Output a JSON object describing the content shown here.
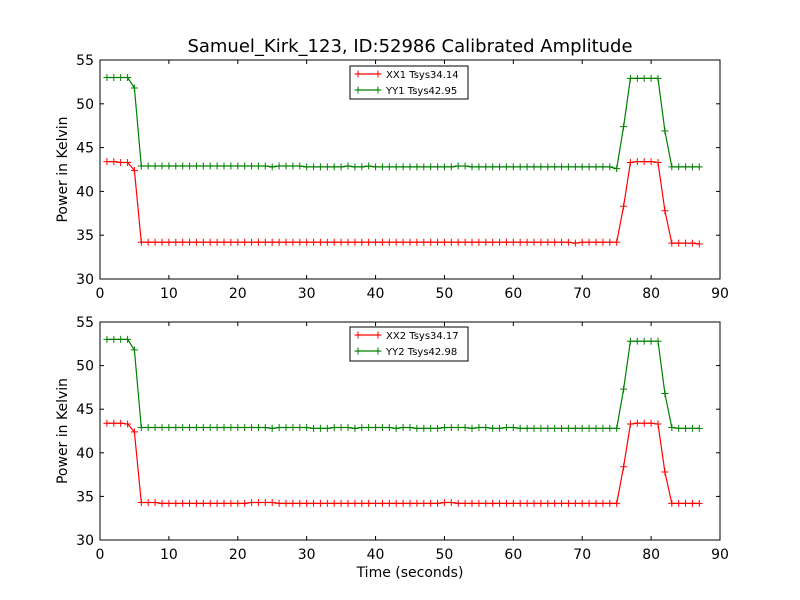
{
  "figure": {
    "title": "Samuel_Kirk_123, ID:52986 Calibrated Amplitude"
  },
  "chart_data": [
    {
      "type": "line",
      "title": "Samuel_Kirk_123, ID:52986 Calibrated Amplitude",
      "xlabel": "",
      "ylabel": "Power in Kelvin",
      "xlim": [
        0,
        90
      ],
      "ylim": [
        30,
        55
      ],
      "xticks": [
        "0",
        "10",
        "20",
        "30",
        "40",
        "50",
        "60",
        "70",
        "80",
        "90"
      ],
      "yticks": [
        "30",
        "35",
        "40",
        "45",
        "50",
        "55"
      ],
      "grid": false,
      "legend_position": "top-center",
      "x": [
        1,
        2,
        3,
        4,
        5,
        6,
        7,
        8,
        9,
        10,
        11,
        12,
        13,
        14,
        15,
        16,
        17,
        18,
        19,
        20,
        21,
        22,
        23,
        24,
        25,
        26,
        27,
        28,
        29,
        30,
        31,
        32,
        33,
        34,
        35,
        36,
        37,
        38,
        39,
        40,
        41,
        42,
        43,
        44,
        45,
        46,
        47,
        48,
        49,
        50,
        51,
        52,
        53,
        54,
        55,
        56,
        57,
        58,
        59,
        60,
        61,
        62,
        63,
        64,
        65,
        66,
        67,
        68,
        69,
        70,
        71,
        72,
        73,
        74,
        75,
        76,
        77,
        78,
        79,
        80,
        81,
        82,
        83,
        84,
        85,
        86,
        87
      ],
      "series": [
        {
          "name": "XX1 Tsys34.14",
          "color": "#ff0000",
          "values": [
            43.4,
            43.4,
            43.3,
            43.3,
            42.4,
            34.2,
            34.2,
            34.2,
            34.2,
            34.2,
            34.2,
            34.2,
            34.2,
            34.2,
            34.2,
            34.2,
            34.2,
            34.2,
            34.2,
            34.2,
            34.2,
            34.2,
            34.2,
            34.2,
            34.2,
            34.2,
            34.2,
            34.2,
            34.2,
            34.2,
            34.2,
            34.2,
            34.2,
            34.2,
            34.2,
            34.2,
            34.2,
            34.2,
            34.2,
            34.2,
            34.2,
            34.2,
            34.2,
            34.2,
            34.2,
            34.2,
            34.2,
            34.2,
            34.2,
            34.2,
            34.2,
            34.2,
            34.2,
            34.2,
            34.2,
            34.2,
            34.2,
            34.2,
            34.2,
            34.2,
            34.2,
            34.2,
            34.2,
            34.2,
            34.2,
            34.2,
            34.2,
            34.2,
            34.1,
            34.2,
            34.2,
            34.2,
            34.2,
            34.2,
            34.2,
            38.3,
            43.3,
            43.4,
            43.4,
            43.4,
            43.3,
            37.8,
            34.1,
            34.1,
            34.1,
            34.1,
            34.0
          ]
        },
        {
          "name": "YY1 Tsys42.95",
          "color": "#008000",
          "values": [
            53.0,
            53.0,
            53.0,
            53.0,
            51.8,
            42.9,
            42.9,
            42.9,
            42.9,
            42.9,
            42.9,
            42.9,
            42.9,
            42.9,
            42.9,
            42.9,
            42.9,
            42.9,
            42.9,
            42.9,
            42.9,
            42.9,
            42.9,
            42.9,
            42.8,
            42.9,
            42.9,
            42.9,
            42.9,
            42.8,
            42.8,
            42.8,
            42.8,
            42.8,
            42.8,
            42.9,
            42.8,
            42.8,
            42.9,
            42.8,
            42.8,
            42.8,
            42.8,
            42.8,
            42.8,
            42.8,
            42.8,
            42.8,
            42.8,
            42.8,
            42.8,
            42.9,
            42.9,
            42.8,
            42.8,
            42.8,
            42.8,
            42.8,
            42.8,
            42.8,
            42.8,
            42.8,
            42.8,
            42.8,
            42.8,
            42.8,
            42.8,
            42.8,
            42.8,
            42.8,
            42.8,
            42.8,
            42.8,
            42.8,
            42.6,
            47.4,
            52.9,
            52.9,
            52.9,
            52.9,
            52.9,
            46.9,
            42.8,
            42.8,
            42.8,
            42.8,
            42.8
          ]
        }
      ]
    },
    {
      "type": "line",
      "title": "",
      "xlabel": "Time (seconds)",
      "ylabel": "Power in Kelvin",
      "xlim": [
        0,
        90
      ],
      "ylim": [
        30,
        55
      ],
      "xticks": [
        "0",
        "10",
        "20",
        "30",
        "40",
        "50",
        "60",
        "70",
        "80",
        "90"
      ],
      "yticks": [
        "30",
        "35",
        "40",
        "45",
        "50",
        "55"
      ],
      "grid": false,
      "legend_position": "top-center",
      "x": [
        1,
        2,
        3,
        4,
        5,
        6,
        7,
        8,
        9,
        10,
        11,
        12,
        13,
        14,
        15,
        16,
        17,
        18,
        19,
        20,
        21,
        22,
        23,
        24,
        25,
        26,
        27,
        28,
        29,
        30,
        31,
        32,
        33,
        34,
        35,
        36,
        37,
        38,
        39,
        40,
        41,
        42,
        43,
        44,
        45,
        46,
        47,
        48,
        49,
        50,
        51,
        52,
        53,
        54,
        55,
        56,
        57,
        58,
        59,
        60,
        61,
        62,
        63,
        64,
        65,
        66,
        67,
        68,
        69,
        70,
        71,
        72,
        73,
        74,
        75,
        76,
        77,
        78,
        79,
        80,
        81,
        82,
        83,
        84,
        85,
        86,
        87
      ],
      "series": [
        {
          "name": "XX2 Tsys34.17",
          "color": "#ff0000",
          "values": [
            43.4,
            43.4,
            43.4,
            43.3,
            42.4,
            34.3,
            34.3,
            34.3,
            34.2,
            34.2,
            34.2,
            34.2,
            34.2,
            34.2,
            34.2,
            34.2,
            34.2,
            34.2,
            34.2,
            34.2,
            34.2,
            34.3,
            34.3,
            34.3,
            34.3,
            34.2,
            34.2,
            34.2,
            34.2,
            34.2,
            34.2,
            34.2,
            34.2,
            34.2,
            34.2,
            34.2,
            34.2,
            34.2,
            34.2,
            34.2,
            34.2,
            34.2,
            34.2,
            34.2,
            34.2,
            34.2,
            34.2,
            34.2,
            34.2,
            34.3,
            34.3,
            34.2,
            34.2,
            34.2,
            34.2,
            34.2,
            34.2,
            34.2,
            34.2,
            34.2,
            34.2,
            34.2,
            34.2,
            34.2,
            34.2,
            34.2,
            34.2,
            34.2,
            34.2,
            34.2,
            34.2,
            34.2,
            34.2,
            34.2,
            34.2,
            38.4,
            43.3,
            43.4,
            43.4,
            43.4,
            43.3,
            37.8,
            34.2,
            34.2,
            34.2,
            34.2,
            34.2
          ]
        },
        {
          "name": "YY2 Tsys42.98",
          "color": "#008000",
          "values": [
            53.0,
            53.0,
            53.0,
            53.0,
            51.8,
            42.9,
            42.9,
            42.9,
            42.9,
            42.9,
            42.9,
            42.9,
            42.9,
            42.9,
            42.9,
            42.9,
            42.9,
            42.9,
            42.9,
            42.9,
            42.9,
            42.9,
            42.9,
            42.9,
            42.8,
            42.9,
            42.9,
            42.9,
            42.9,
            42.9,
            42.8,
            42.8,
            42.8,
            42.9,
            42.9,
            42.9,
            42.8,
            42.9,
            42.9,
            42.9,
            42.9,
            42.9,
            42.8,
            42.9,
            42.9,
            42.8,
            42.8,
            42.8,
            42.8,
            42.9,
            42.9,
            42.9,
            42.9,
            42.8,
            42.9,
            42.9,
            42.8,
            42.8,
            42.9,
            42.9,
            42.8,
            42.8,
            42.8,
            42.8,
            42.8,
            42.8,
            42.8,
            42.8,
            42.8,
            42.8,
            42.8,
            42.8,
            42.8,
            42.8,
            42.8,
            47.3,
            52.8,
            52.8,
            52.8,
            52.8,
            52.8,
            46.8,
            42.9,
            42.8,
            42.8,
            42.8,
            42.8
          ]
        }
      ]
    }
  ]
}
